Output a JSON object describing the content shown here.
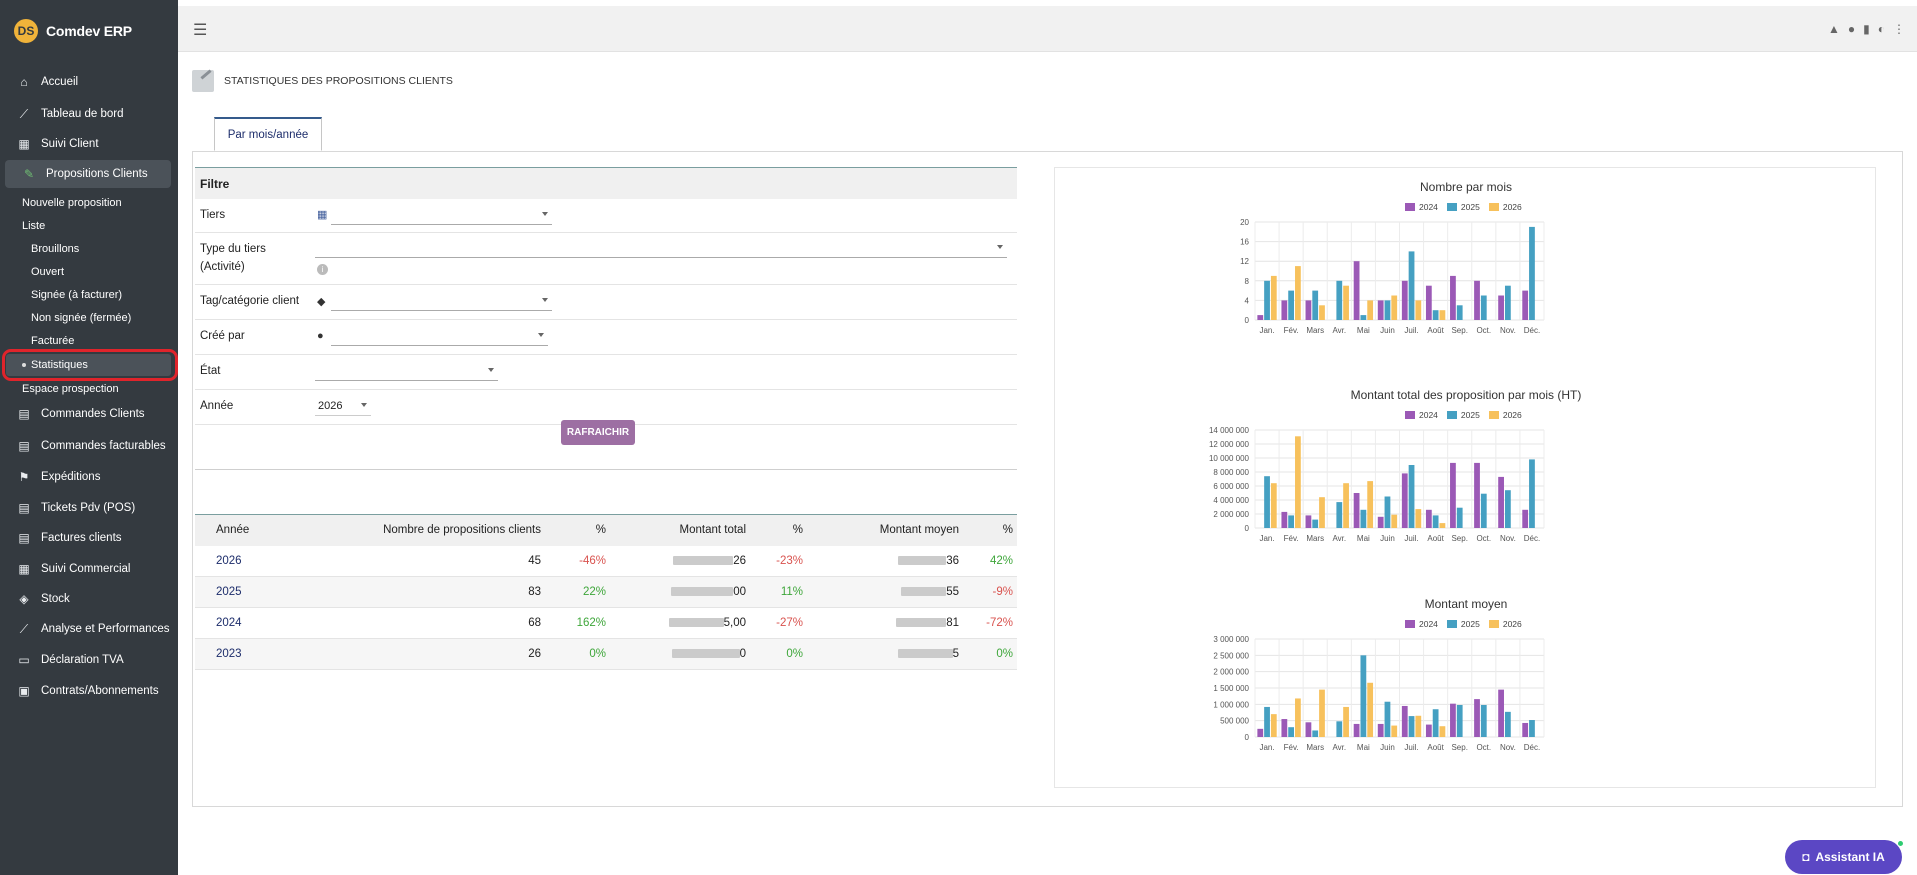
{
  "app": {
    "name": "Comdev ERP",
    "logo_text": "DS"
  },
  "sidebar": {
    "items": [
      {
        "label": "Accueil",
        "icon": "home-icon"
      },
      {
        "label": "Tableau de bord",
        "icon": "line-chart-icon"
      },
      {
        "label": "Suivi Client",
        "icon": "building-icon"
      },
      {
        "label": "Propositions Clients",
        "icon": "pen-icon"
      },
      {
        "label": "Commandes Clients",
        "icon": "file-icon"
      },
      {
        "label": "Commandes facturables",
        "icon": "file-icon"
      },
      {
        "label": "Expéditions",
        "icon": "dolly-icon"
      },
      {
        "label": "Tickets Pdv (POS)",
        "icon": "file-icon"
      },
      {
        "label": "Factures clients",
        "icon": "file-icon"
      },
      {
        "label": "Suivi Commercial",
        "icon": "building-icon"
      },
      {
        "label": "Stock",
        "icon": "box-icon"
      },
      {
        "label": "Analyse et Performances",
        "icon": "line-chart-icon"
      },
      {
        "label": "Déclaration TVA",
        "icon": "card-icon"
      },
      {
        "label": "Contrats/Abonnements",
        "icon": "briefcase-icon"
      }
    ],
    "submenu": {
      "nouvelle": "Nouvelle proposition",
      "liste": "Liste",
      "brouillons": "Brouillons",
      "ouvert": "Ouvert",
      "signee": "Signée (à facturer)",
      "non_signee": "Non signée (fermée)",
      "facturee": "Facturée",
      "statistiques": "Statistiques",
      "espace": "Espace prospection"
    }
  },
  "page": {
    "title": "STATISTIQUES DES PROPOSITIONS CLIENTS",
    "tab": "Par mois/année"
  },
  "filter": {
    "heading": "Filtre",
    "tiers": "Tiers",
    "type_tiers": "Type du tiers",
    "type_tiers_sub": "(Activité)",
    "tag": "Tag/catégorie client",
    "cree_par": "Créé par",
    "etat": "État",
    "annee": "Année",
    "annee_value": "2026",
    "refresh": "RAFRAICHIR"
  },
  "stats": {
    "headers": [
      "Année",
      "Nombre de propositions clients",
      "%",
      "Montant total",
      "%",
      "Montant moyen",
      "%"
    ],
    "rows": [
      {
        "year": "2026",
        "count": "45",
        "pct1": "-46%",
        "total_tail": "26",
        "pct2": "-23%",
        "avg_tail": "36",
        "pct3": "42%"
      },
      {
        "year": "2025",
        "count": "83",
        "pct1": "22%",
        "total_tail": "00",
        "pct2": "11%",
        "avg_tail": "55",
        "pct3": "-9%"
      },
      {
        "year": "2024",
        "count": "68",
        "pct1": "162%",
        "total_tail": "5,00",
        "pct2": "-27%",
        "avg_tail": "81",
        "pct3": "-72%"
      },
      {
        "year": "2023",
        "count": "26",
        "pct1": "0%",
        "total_tail": "0",
        "pct2": "0%",
        "avg_tail": "5",
        "pct3": "0%"
      }
    ]
  },
  "colors": {
    "y2024": "#9b59b6",
    "y2025": "#45a0c2",
    "y2026": "#f7c15c"
  },
  "legend": [
    "2024",
    "2025",
    "2026"
  ],
  "chart_data": [
    {
      "type": "bar",
      "title": "Nombre par mois",
      "categories": [
        "Jan.",
        "Fév.",
        "Mars",
        "Avr.",
        "Mai",
        "Juin",
        "Juil.",
        "Août",
        "Sep.",
        "Oct.",
        "Nov.",
        "Déc."
      ],
      "ylim": [
        0,
        20
      ],
      "yticks": [
        "0",
        "4",
        "8",
        "12",
        "16",
        "20"
      ],
      "series": [
        {
          "name": "2024",
          "values": [
            1,
            4,
            4,
            0,
            12,
            4,
            8,
            7,
            9,
            8,
            5,
            6
          ]
        },
        {
          "name": "2025",
          "values": [
            8,
            6,
            6,
            8,
            1,
            4,
            14,
            2,
            3,
            5,
            7,
            19
          ]
        },
        {
          "name": "2026",
          "values": [
            9,
            11,
            3,
            7,
            4,
            5,
            4,
            2,
            0,
            0,
            0,
            0
          ]
        }
      ]
    },
    {
      "type": "bar",
      "title": "Montant total des proposition par mois (HT)",
      "categories": [
        "Jan.",
        "Fév.",
        "Mars",
        "Avr.",
        "Mai",
        "Juin",
        "Juil.",
        "Août",
        "Sep.",
        "Oct.",
        "Nov.",
        "Déc."
      ],
      "ylim": [
        0,
        14000000
      ],
      "yticks": [
        "0",
        "2 000 000",
        "4 000 000",
        "6 000 000",
        "8 000 000",
        "10 000 000",
        "12 000 000",
        "14 000 000"
      ],
      "series": [
        {
          "name": "2024",
          "values": [
            0,
            2300000,
            1800000,
            0,
            5000000,
            1600000,
            7800000,
            2600000,
            9300000,
            9300000,
            7300000,
            2600000
          ]
        },
        {
          "name": "2025",
          "values": [
            7400000,
            1800000,
            1200000,
            3700000,
            2600000,
            4500000,
            9000000,
            1800000,
            2900000,
            4900000,
            5400000,
            9800000
          ]
        },
        {
          "name": "2026",
          "values": [
            6400000,
            13100000,
            4400000,
            6400000,
            6700000,
            1900000,
            2700000,
            700000,
            0,
            0,
            0,
            0
          ]
        }
      ]
    },
    {
      "type": "bar",
      "title": "Montant moyen",
      "categories": [
        "Jan.",
        "Fév.",
        "Mars",
        "Avr.",
        "Mai",
        "Juin",
        "Juil.",
        "Août",
        "Sep.",
        "Oct.",
        "Nov.",
        "Déc."
      ],
      "ylim": [
        0,
        3000000
      ],
      "yticks": [
        "0",
        "500 000",
        "1 000 000",
        "1 500 000",
        "2 000 000",
        "2 500 000",
        "3 000 000"
      ],
      "series": [
        {
          "name": "2024",
          "values": [
            250000,
            550000,
            450000,
            0,
            400000,
            400000,
            950000,
            380000,
            1020000,
            1160000,
            1450000,
            430000
          ]
        },
        {
          "name": "2025",
          "values": [
            920000,
            300000,
            200000,
            480000,
            2500000,
            1080000,
            640000,
            850000,
            980000,
            980000,
            770000,
            520000
          ]
        },
        {
          "name": "2026",
          "values": [
            700000,
            1180000,
            1450000,
            920000,
            1660000,
            350000,
            650000,
            330000,
            0,
            0,
            0,
            0
          ]
        }
      ]
    }
  ],
  "assistant": {
    "label": "Assistant IA"
  }
}
